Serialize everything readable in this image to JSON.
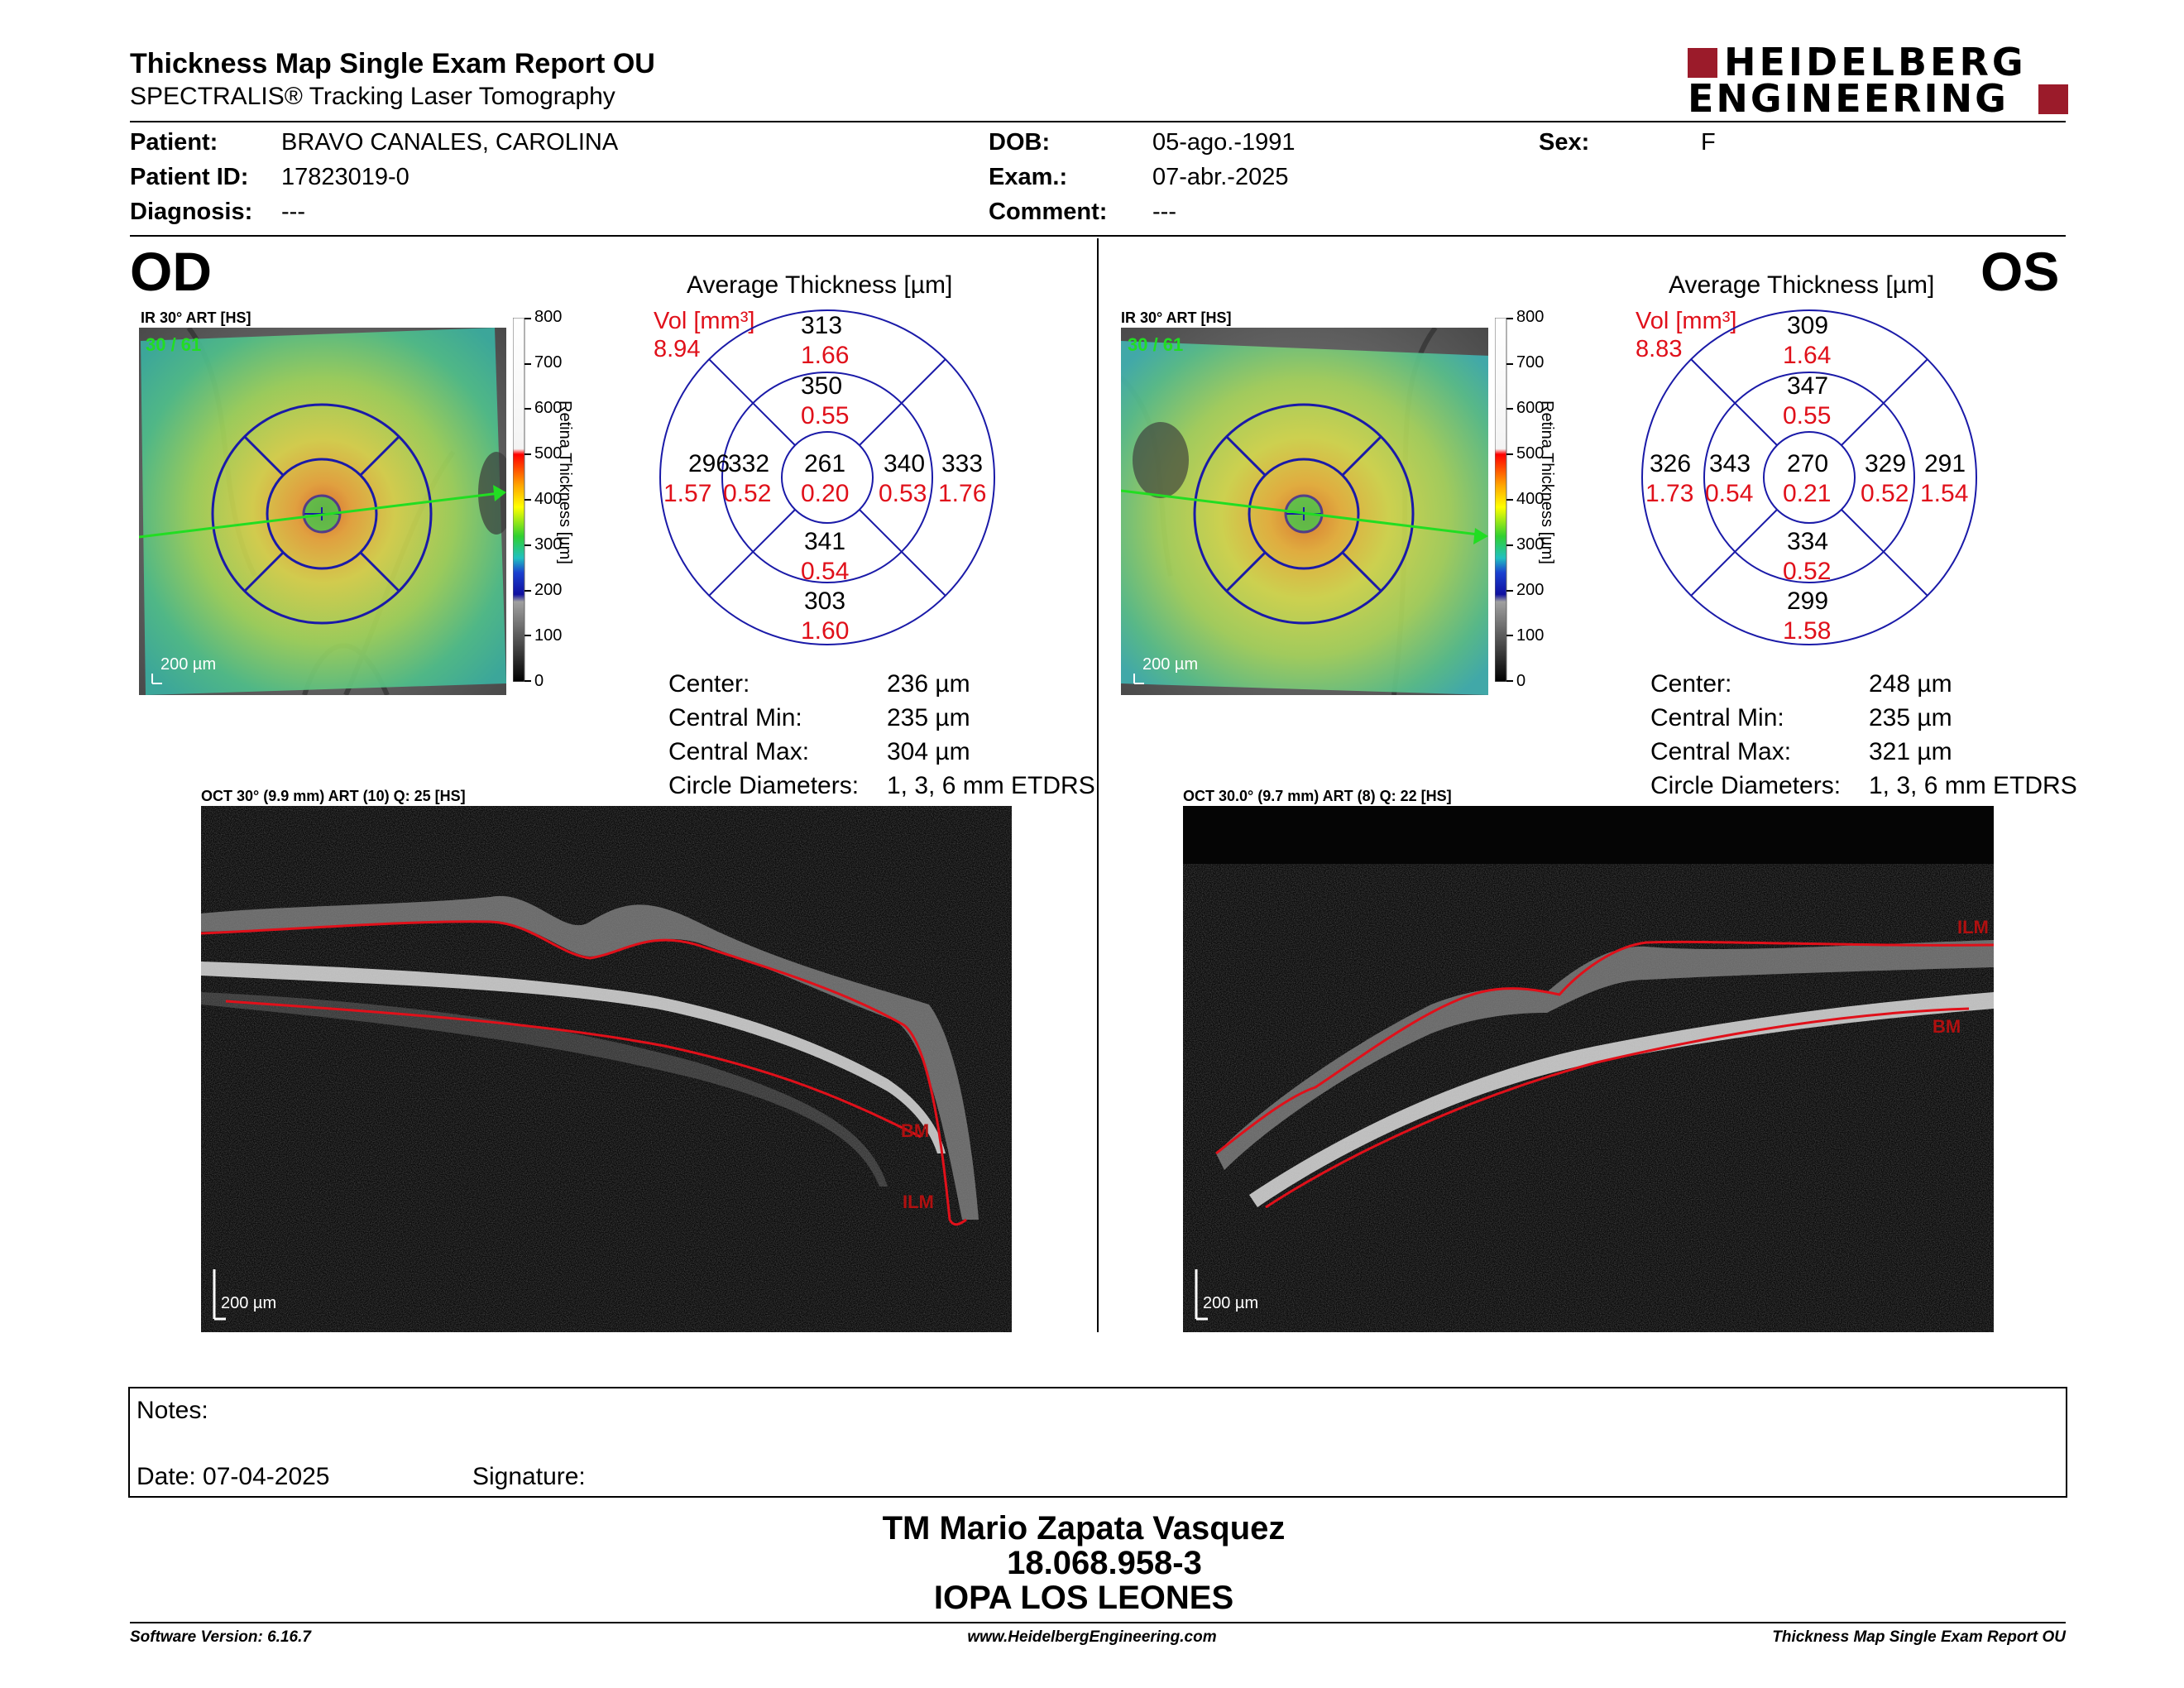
{
  "header": {
    "title": "Thickness Map Single Exam Report OU",
    "subtitle": "SPECTRALIS® Tracking Laser Tomography",
    "logo_line1": "HEIDELBERG",
    "logo_line2": "ENGINEERING"
  },
  "patient": {
    "name_label": "Patient:",
    "name": "BRAVO CANALES, CAROLINA",
    "id_label": "Patient ID:",
    "id": "17823019-0",
    "diagnosis_label": "Diagnosis:",
    "diagnosis": "---",
    "dob_label": "DOB:",
    "dob": "05-ago.-1991",
    "exam_label": "Exam.:",
    "exam": "07-abr.-2025",
    "comment_label": "Comment:",
    "comment": "---",
    "sex_label": "Sex:",
    "sex": "F"
  },
  "od": {
    "eye_label": "OD",
    "ir_title": "IR 30° ART [HS]",
    "ir_counter": "30 / 61",
    "ir_scale": "200 µm",
    "avg_title": "Average Thickness [µm]",
    "vol_label": "Vol [mm³]",
    "vol_total": "8.94",
    "sectors": {
      "center": {
        "thickness": "261",
        "volume": "0.20"
      },
      "inner_sup": {
        "thickness": "350",
        "volume": "0.55"
      },
      "inner_inf": {
        "thickness": "341",
        "volume": "0.54"
      },
      "inner_nas": {
        "thickness": "340",
        "volume": "0.53"
      },
      "inner_tmp": {
        "thickness": "332",
        "volume": "0.52"
      },
      "outer_sup": {
        "thickness": "313",
        "volume": "1.66"
      },
      "outer_inf": {
        "thickness": "303",
        "volume": "1.60"
      },
      "outer_nas": {
        "thickness": "333",
        "volume": "1.76"
      },
      "outer_tmp": {
        "thickness": "296",
        "volume": "1.57"
      }
    },
    "stats": {
      "center_label": "Center:",
      "center": "236 µm",
      "min_label": "Central Min:",
      "min": "235 µm",
      "max_label": "Central Max:",
      "max": "304 µm",
      "diam_label": "Circle Diameters:",
      "diam": "1, 3, 6 mm ETDRS"
    },
    "oct_title": "OCT 30° (9.9 mm) ART (10) Q: 25 [HS]",
    "oct_scale": "200 µm",
    "ilm_label": "ILM",
    "bm_label": "BM"
  },
  "os": {
    "eye_label": "OS",
    "ir_title": "IR 30° ART [HS]",
    "ir_counter": "30 / 61",
    "ir_scale": "200 µm",
    "avg_title": "Average Thickness [µm]",
    "vol_label": "Vol [mm³]",
    "vol_total": "8.83",
    "sectors": {
      "center": {
        "thickness": "270",
        "volume": "0.21"
      },
      "inner_sup": {
        "thickness": "347",
        "volume": "0.55"
      },
      "inner_inf": {
        "thickness": "334",
        "volume": "0.52"
      },
      "inner_nas": {
        "thickness": "343",
        "volume": "0.54"
      },
      "inner_tmp": {
        "thickness": "329",
        "volume": "0.52"
      },
      "outer_sup": {
        "thickness": "309",
        "volume": "1.64"
      },
      "outer_inf": {
        "thickness": "299",
        "volume": "1.58"
      },
      "outer_nas": {
        "thickness": "326",
        "volume": "1.73"
      },
      "outer_tmp": {
        "thickness": "291",
        "volume": "1.54"
      }
    },
    "stats": {
      "center_label": "Center:",
      "center": "248 µm",
      "min_label": "Central Min:",
      "min": "235 µm",
      "max_label": "Central Max:",
      "max": "321 µm",
      "diam_label": "Circle Diameters:",
      "diam": "1, 3, 6 mm ETDRS"
    },
    "oct_title": "OCT 30.0° (9.7 mm) ART (8) Q: 22 [HS]",
    "oct_scale": "200 µm",
    "ilm_label": "ILM",
    "bm_label": "BM"
  },
  "colorbar": {
    "axis_label": "Retina Thickness [µm]",
    "ticks": [
      "800",
      "700",
      "600",
      "500",
      "400",
      "300",
      "200",
      "100",
      "0"
    ]
  },
  "notes": {
    "notes_label": "Notes:",
    "date_label": "Date: 07-04-2025",
    "signature_label": "Signature:"
  },
  "signer": {
    "name": "TM Mario Zapata Vasquez",
    "rut": "18.068.958-3",
    "clinic": "IOPA LOS LEONES"
  },
  "footer": {
    "software": "Software Version: 6.16.7",
    "website": "www.HeidelbergEngineering.com",
    "report": "Thickness Map Single Exam Report OU"
  },
  "colors": {
    "accent_red": "#e0101a",
    "logo_red": "#9b1b2a",
    "grid_blue": "#1a1aa8",
    "scan_green": "#22dd22"
  }
}
